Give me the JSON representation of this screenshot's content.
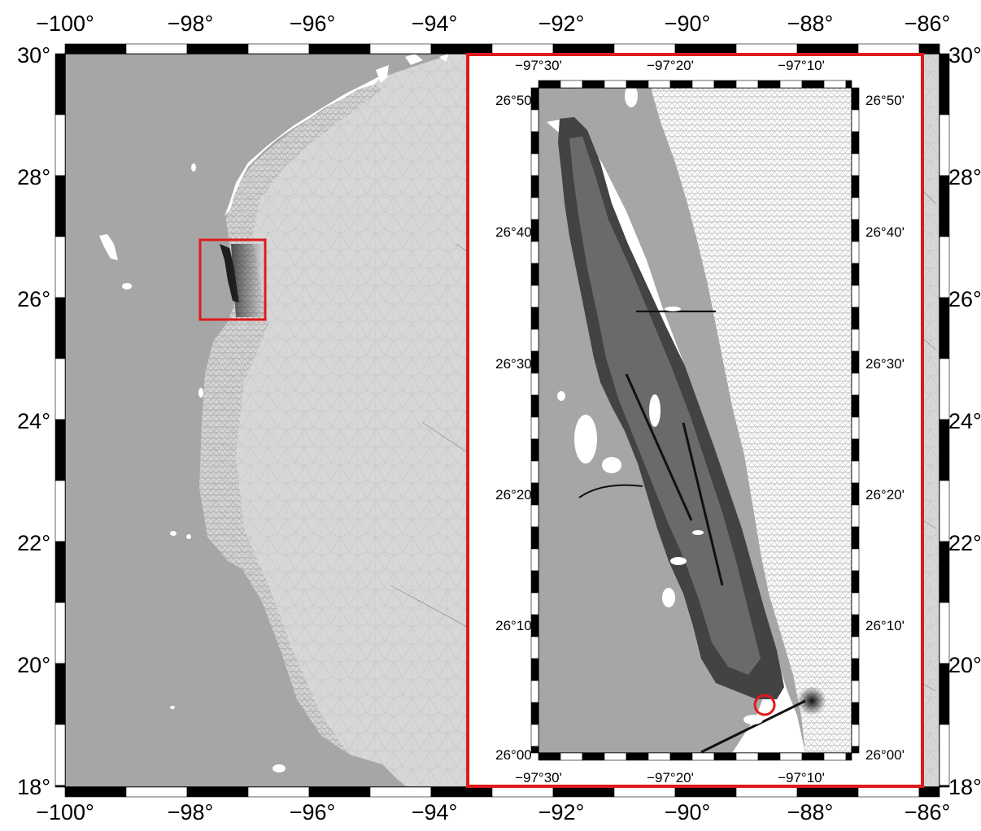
{
  "main_map": {
    "lon_ticks": [
      "−100°",
      "−98°",
      "−96°",
      "−94°",
      "−92°",
      "−90°",
      "−88°",
      "−86°"
    ],
    "lat_ticks": [
      "30°",
      "28°",
      "26°",
      "24°",
      "22°",
      "20°",
      "18°"
    ],
    "lon_range": [
      -100,
      -86
    ],
    "lat_range": [
      18,
      30
    ]
  },
  "inset_map": {
    "lon_ticks": [
      "−97°30'",
      "−97°20'",
      "−97°10'"
    ],
    "lat_ticks": [
      "26°50'",
      "26°40'",
      "26°30'",
      "26°20'",
      "26°10'",
      "26°00'"
    ]
  },
  "colors": {
    "land": "#a6a6a6",
    "water": "#ffffff",
    "mesh_line": "#6e6e6e",
    "highlight": "#e0191c",
    "frame": "#000000"
  }
}
